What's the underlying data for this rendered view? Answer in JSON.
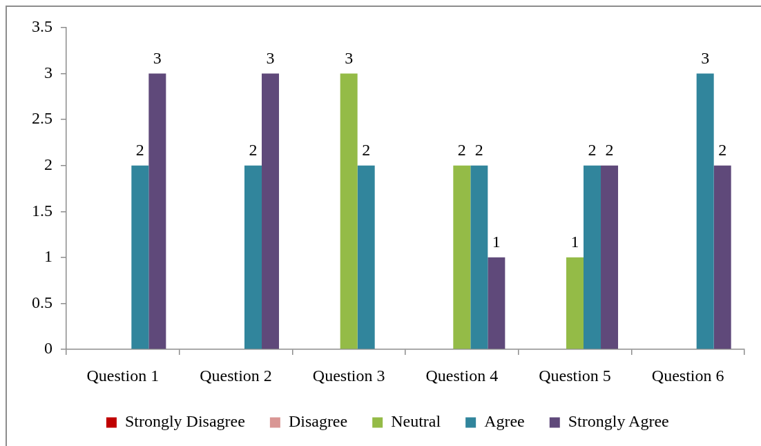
{
  "chart_data": {
    "type": "bar",
    "categories": [
      "Question 1",
      "Question 2",
      "Question 3",
      "Question 4",
      "Question 5",
      "Question 6"
    ],
    "series": [
      {
        "name": "Strongly Disagree",
        "color": "#c00000",
        "values": [
          null,
          null,
          null,
          null,
          null,
          null
        ]
      },
      {
        "name": "Disagree",
        "color": "#d99694",
        "values": [
          null,
          null,
          null,
          null,
          null,
          null
        ]
      },
      {
        "name": "Neutral",
        "color": "#94bb47",
        "values": [
          null,
          null,
          3,
          2,
          1,
          null
        ]
      },
      {
        "name": "Agree",
        "color": "#31859c",
        "values": [
          2,
          2,
          2,
          2,
          2,
          3
        ]
      },
      {
        "name": "Strongly Agree",
        "color": "#5f497a",
        "values": [
          3,
          3,
          null,
          1,
          2,
          2
        ]
      }
    ],
    "ylim": [
      0,
      3.5
    ],
    "yticks": [
      0,
      0.5,
      1,
      1.5,
      2,
      2.5,
      3,
      3.5
    ],
    "grid": false,
    "legend": "bottom",
    "data_labels": true
  }
}
